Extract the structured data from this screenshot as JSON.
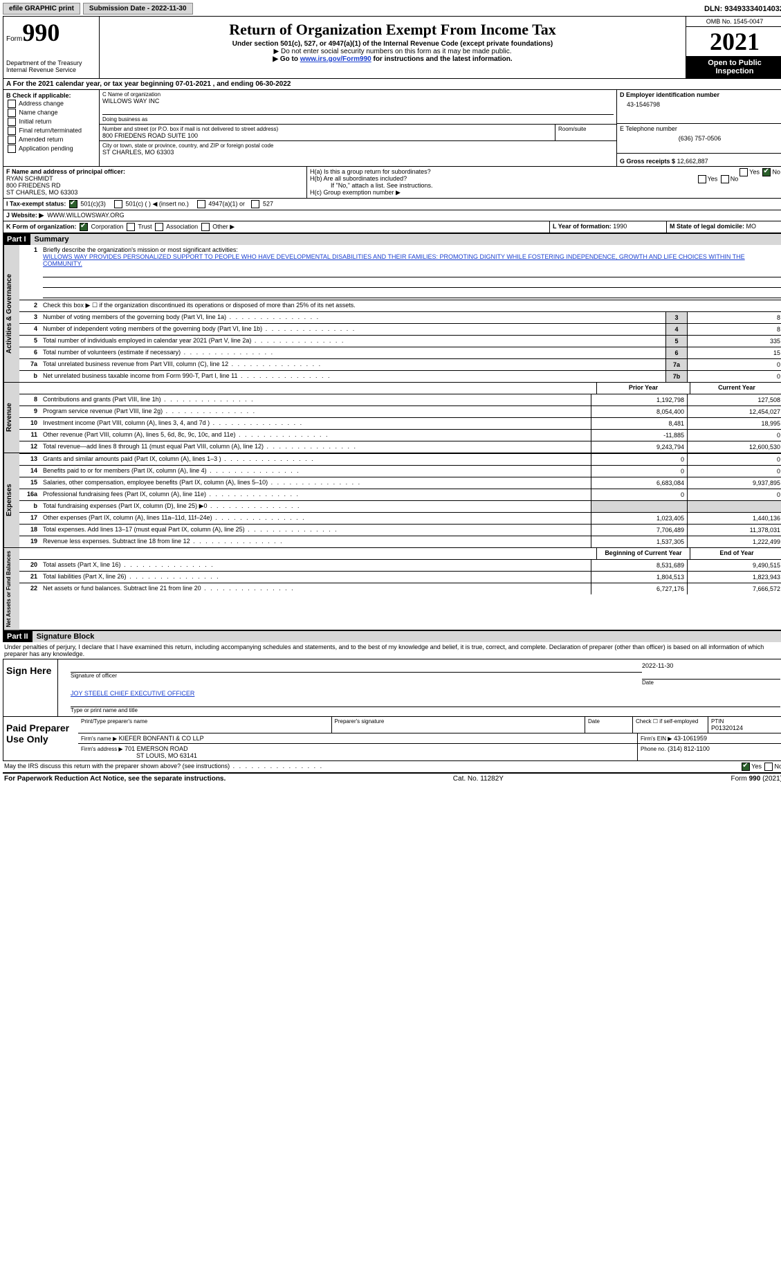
{
  "top": {
    "efile": "efile GRAPHIC print",
    "submission_label": "Submission Date - 2022-11-30",
    "dln": "DLN: 93493334014032"
  },
  "header": {
    "form_word": "Form",
    "form_num": "990",
    "dept": "Department of the Treasury Internal Revenue Service",
    "title": "Return of Organization Exempt From Income Tax",
    "subtitle": "Under section 501(c), 527, or 4947(a)(1) of the Internal Revenue Code (except private foundations)",
    "note1": "▶ Do not enter social security numbers on this form as it may be made public.",
    "note2_pre": "▶ Go to ",
    "note2_link": "www.irs.gov/Form990",
    "note2_post": " for instructions and the latest information.",
    "omb": "OMB No. 1545-0047",
    "year": "2021",
    "open": "Open to Public Inspection"
  },
  "period": "A For the 2021 calendar year, or tax year beginning 07-01-2021   , and ending 06-30-2022",
  "B": {
    "label": "B Check if applicable:",
    "items": [
      "Address change",
      "Name change",
      "Initial return",
      "Final return/terminated",
      "Amended return",
      "Application pending"
    ]
  },
  "C": {
    "name_label": "C Name of organization",
    "name": "WILLOWS WAY INC",
    "dba_label": "Doing business as",
    "street_label": "Number and street (or P.O. box if mail is not delivered to street address)",
    "street": "800 FRIEDENS ROAD SUITE 100",
    "room_label": "Room/suite",
    "city_label": "City or town, state or province, country, and ZIP or foreign postal code",
    "city": "ST CHARLES, MO  63303"
  },
  "D": {
    "label": "D Employer identification number",
    "value": "43-1546798"
  },
  "E": {
    "label": "E Telephone number",
    "value": "(636) 757-0506"
  },
  "G": {
    "label": "G Gross receipts $",
    "value": "12,662,887"
  },
  "F": {
    "label": "F Name and address of principal officer:",
    "name": "RYAN SCHMIDT",
    "street": "800 FRIEDENS RD",
    "city": "ST CHARLES, MO  63303"
  },
  "H": {
    "a": "H(a)  Is this a group return for subordinates?",
    "b": "H(b)  Are all subordinates included?",
    "b_note": "If \"No,\" attach a list. See instructions.",
    "c": "H(c)  Group exemption number ▶"
  },
  "I": {
    "label": "I    Tax-exempt status:",
    "opt1": "501(c)(3)",
    "opt2": "501(c) (  ) ◀ (insert no.)",
    "opt3": "4947(a)(1) or",
    "opt4": "527"
  },
  "J": {
    "label": "J   Website: ▶",
    "value": "WWW.WILLOWSWAY.ORG"
  },
  "K": {
    "label": "K Form of organization:",
    "opts": [
      "Corporation",
      "Trust",
      "Association",
      "Other ▶"
    ]
  },
  "L": {
    "label": "L Year of formation:",
    "value": "1990"
  },
  "M": {
    "label": "M State of legal domicile:",
    "value": "MO"
  },
  "part1": {
    "num": "Part I",
    "title": "Summary"
  },
  "summary": {
    "l1_label": "Briefly describe the organization's mission or most significant activities:",
    "l1_text": "WILLOWS WAY PROVIDES PERSONALIZED SUPPORT TO PEOPLE WHO HAVE DEVELOPMENTAL DISABILITIES AND THEIR FAMILIES: PROMOTING DIGNITY WHILE FOSTERING INDEPENDENCE, GROWTH AND LIFE CHOICES WITHIN THE COMMUNITY.",
    "l2": "Check this box ▶ ☐ if the organization discontinued its operations or disposed of more than 25% of its net assets.",
    "rows_ag": [
      {
        "n": "3",
        "t": "Number of voting members of the governing body (Part VI, line 1a)",
        "b": "3",
        "v": "8"
      },
      {
        "n": "4",
        "t": "Number of independent voting members of the governing body (Part VI, line 1b)",
        "b": "4",
        "v": "8"
      },
      {
        "n": "5",
        "t": "Total number of individuals employed in calendar year 2021 (Part V, line 2a)",
        "b": "5",
        "v": "335"
      },
      {
        "n": "6",
        "t": "Total number of volunteers (estimate if necessary)",
        "b": "6",
        "v": "15"
      },
      {
        "n": "7a",
        "t": "Total unrelated business revenue from Part VIII, column (C), line 12",
        "b": "7a",
        "v": "0"
      },
      {
        "n": "b",
        "t": "Net unrelated business taxable income from Form 990-T, Part I, line 11",
        "b": "7b",
        "v": "0"
      }
    ],
    "hdr_prior": "Prior Year",
    "hdr_current": "Current Year",
    "revenue": [
      {
        "n": "8",
        "t": "Contributions and grants (Part VIII, line 1h)",
        "p": "1,192,798",
        "c": "127,508"
      },
      {
        "n": "9",
        "t": "Program service revenue (Part VIII, line 2g)",
        "p": "8,054,400",
        "c": "12,454,027"
      },
      {
        "n": "10",
        "t": "Investment income (Part VIII, column (A), lines 3, 4, and 7d )",
        "p": "8,481",
        "c": "18,995"
      },
      {
        "n": "11",
        "t": "Other revenue (Part VIII, column (A), lines 5, 6d, 8c, 9c, 10c, and 11e)",
        "p": "-11,885",
        "c": "0"
      },
      {
        "n": "12",
        "t": "Total revenue—add lines 8 through 11 (must equal Part VIII, column (A), line 12)",
        "p": "9,243,794",
        "c": "12,600,530"
      }
    ],
    "expenses": [
      {
        "n": "13",
        "t": "Grants and similar amounts paid (Part IX, column (A), lines 1–3 )",
        "p": "0",
        "c": "0"
      },
      {
        "n": "14",
        "t": "Benefits paid to or for members (Part IX, column (A), line 4)",
        "p": "0",
        "c": "0"
      },
      {
        "n": "15",
        "t": "Salaries, other compensation, employee benefits (Part IX, column (A), lines 5–10)",
        "p": "6,683,084",
        "c": "9,937,895"
      },
      {
        "n": "16a",
        "t": "Professional fundraising fees (Part IX, column (A), line 11e)",
        "p": "0",
        "c": "0"
      },
      {
        "n": "b",
        "t": "Total fundraising expenses (Part IX, column (D), line 25) ▶0",
        "p": "",
        "c": "",
        "gray": true
      },
      {
        "n": "17",
        "t": "Other expenses (Part IX, column (A), lines 11a–11d, 11f–24e)",
        "p": "1,023,405",
        "c": "1,440,136"
      },
      {
        "n": "18",
        "t": "Total expenses. Add lines 13–17 (must equal Part IX, column (A), line 25)",
        "p": "7,706,489",
        "c": "11,378,031"
      },
      {
        "n": "19",
        "t": "Revenue less expenses. Subtract line 18 from line 12",
        "p": "1,537,305",
        "c": "1,222,499"
      }
    ],
    "hdr_begin": "Beginning of Current Year",
    "hdr_end": "End of Year",
    "netassets": [
      {
        "n": "20",
        "t": "Total assets (Part X, line 16)",
        "p": "8,531,689",
        "c": "9,490,515"
      },
      {
        "n": "21",
        "t": "Total liabilities (Part X, line 26)",
        "p": "1,804,513",
        "c": "1,823,943"
      },
      {
        "n": "22",
        "t": "Net assets or fund balances. Subtract line 21 from line 20",
        "p": "6,727,176",
        "c": "7,666,572"
      }
    ]
  },
  "part2": {
    "num": "Part II",
    "title": "Signature Block"
  },
  "penalties": "Under penalties of perjury, I declare that I have examined this return, including accompanying schedules and statements, and to the best of my knowledge and belief, it is true, correct, and complete. Declaration of preparer (other than officer) is based on all information of which preparer has any knowledge.",
  "sign": {
    "here": "Sign Here",
    "sig_label": "Signature of officer",
    "date_label": "Date",
    "date": "2022-11-30",
    "name": "JOY STEELE CHIEF EXECUTIVE OFFICER",
    "name_label": "Type or print name and title"
  },
  "paid": {
    "title": "Paid Preparer Use Only",
    "h1": "Print/Type preparer's name",
    "h2": "Preparer's signature",
    "h3": "Date",
    "h4_a": "Check ☐ if self-employed",
    "h5": "PTIN",
    "ptin": "P01320124",
    "firm_label": "Firm's name    ▶",
    "firm": "KIEFER BONFANTI & CO LLP",
    "ein_label": "Firm's EIN ▶",
    "ein": "43-1061959",
    "addr_label": "Firm's address ▶",
    "addr1": "701 EMERSON ROAD",
    "addr2": "ST LOUIS, MO  63141",
    "phone_label": "Phone no.",
    "phone": "(314) 812-1100"
  },
  "discuss": "May the IRS discuss this return with the preparer shown above? (see instructions)",
  "footer": {
    "left": "For Paperwork Reduction Act Notice, see the separate instructions.",
    "mid": "Cat. No. 11282Y",
    "right": "Form 990 (2021)"
  }
}
